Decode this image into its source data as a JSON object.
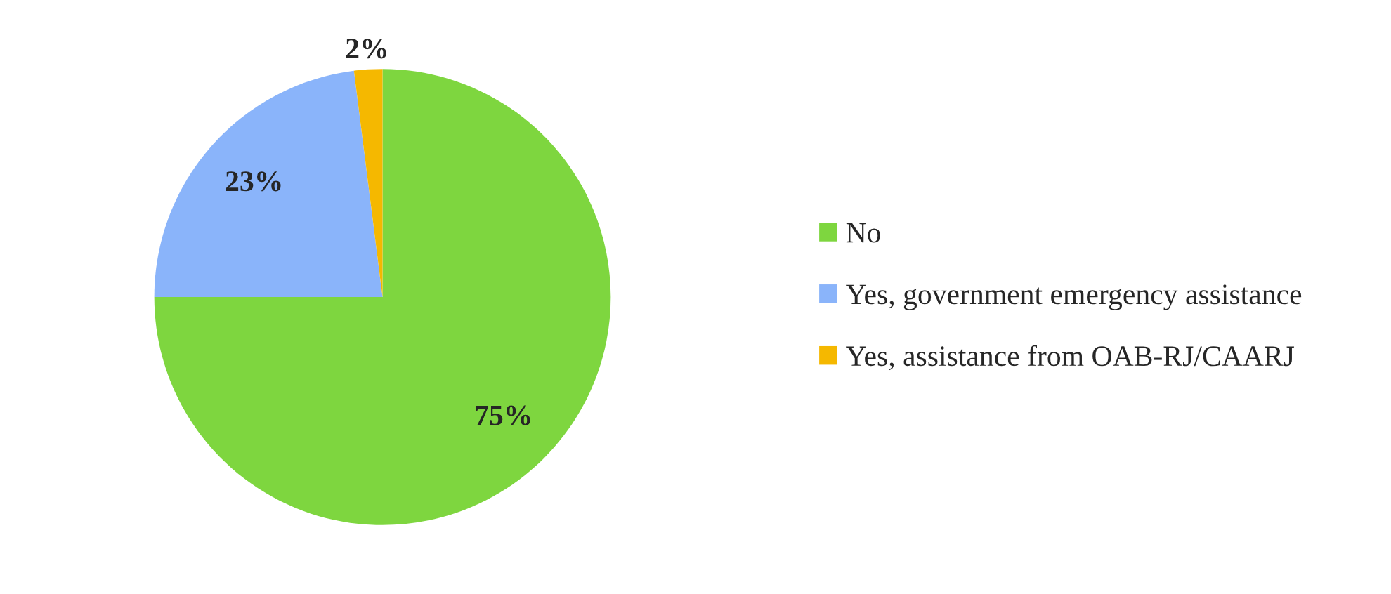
{
  "chart_data": {
    "type": "pie",
    "categories": [
      "No",
      "Yes, government emergency assistance",
      "Yes, assistance from OAB-RJ/CAARJ"
    ],
    "values": [
      75,
      23,
      2
    ],
    "colors": [
      "#7ed63f",
      "#8ab4fa",
      "#f5b800"
    ],
    "value_labels": [
      "75%",
      "23%",
      "2%"
    ],
    "legend": "right"
  }
}
